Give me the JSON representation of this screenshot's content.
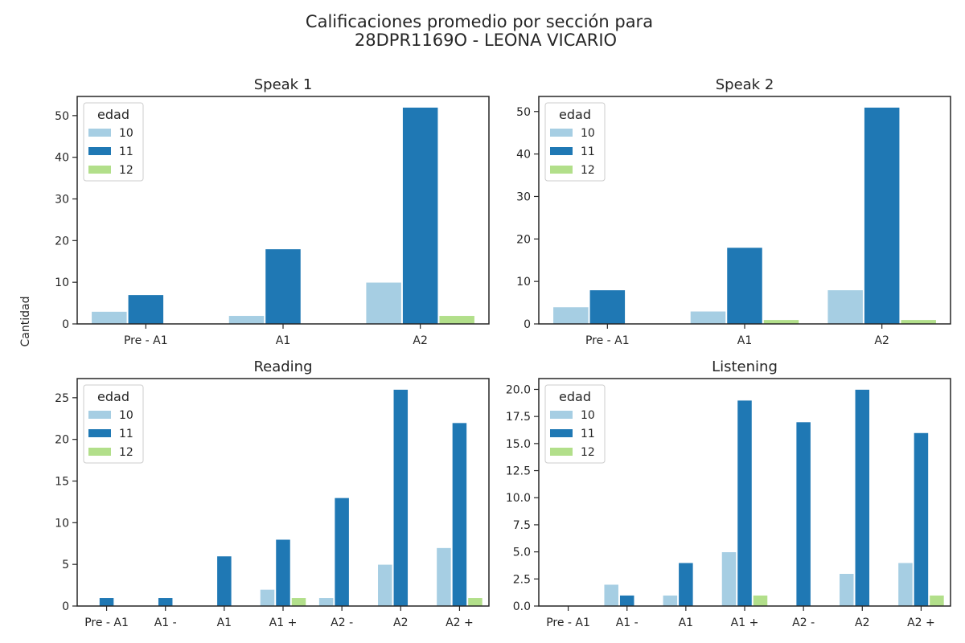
{
  "figure": {
    "title_line1": "Calificaciones promedio por sección para",
    "title_line2": "28DPR1169O - LEONA VICARIO",
    "ylabel": "Cantidad"
  },
  "colors": {
    "10": "#a6cee3",
    "11": "#1f78b4",
    "12": "#b2df8a"
  },
  "chart_data": [
    {
      "type": "bar",
      "title": "Speak 1",
      "categories": [
        "Pre - A1",
        "A1",
        "A2"
      ],
      "series": [
        {
          "name": "10",
          "values": [
            3,
            2,
            10
          ]
        },
        {
          "name": "11",
          "values": [
            7,
            18,
            52
          ]
        },
        {
          "name": "12",
          "values": [
            0,
            0,
            2
          ]
        }
      ],
      "ylim": [
        0,
        54.6
      ],
      "yticks": [
        0,
        10,
        20,
        30,
        40,
        50
      ],
      "legend": {
        "title": "edad",
        "placement": "top-left"
      }
    },
    {
      "type": "bar",
      "title": "Speak 2",
      "categories": [
        "Pre - A1",
        "A1",
        "A2"
      ],
      "series": [
        {
          "name": "10",
          "values": [
            4,
            3,
            8
          ]
        },
        {
          "name": "11",
          "values": [
            8,
            18,
            51
          ]
        },
        {
          "name": "12",
          "values": [
            0,
            1,
            1
          ]
        }
      ],
      "ylim": [
        0,
        53.55
      ],
      "yticks": [
        0,
        10,
        20,
        30,
        40,
        50
      ],
      "legend": {
        "title": "edad",
        "placement": "top-left"
      }
    },
    {
      "type": "bar",
      "title": "Reading",
      "categories": [
        "Pre - A1",
        "A1 -",
        "A1",
        "A1 +",
        "A2 -",
        "A2",
        "A2 +"
      ],
      "series": [
        {
          "name": "10",
          "values": [
            0,
            0,
            0,
            2,
            1,
            5,
            7
          ]
        },
        {
          "name": "11",
          "values": [
            1,
            1,
            6,
            8,
            13,
            26,
            22
          ]
        },
        {
          "name": "12",
          "values": [
            0,
            0,
            0,
            1,
            0,
            0,
            1
          ]
        }
      ],
      "ylim": [
        0,
        27.3
      ],
      "yticks": [
        0,
        5,
        10,
        15,
        20,
        25
      ],
      "legend": {
        "title": "edad",
        "placement": "top-left"
      }
    },
    {
      "type": "bar",
      "title": "Listening",
      "categories": [
        "Pre - A1",
        "A1 -",
        "A1",
        "A1 +",
        "A2 -",
        "A2",
        "A2 +"
      ],
      "series": [
        {
          "name": "10",
          "values": [
            0,
            2,
            1,
            5,
            0,
            3,
            4
          ]
        },
        {
          "name": "11",
          "values": [
            0,
            1,
            4,
            19,
            17,
            20,
            16
          ]
        },
        {
          "name": "12",
          "values": [
            0,
            0,
            0,
            1,
            0,
            0,
            1
          ]
        }
      ],
      "ylim": [
        0,
        21
      ],
      "yticks": [
        0.0,
        2.5,
        5.0,
        7.5,
        10.0,
        12.5,
        15.0,
        17.5,
        20.0
      ],
      "ytick_labels": [
        "0.0",
        "2.5",
        "5.0",
        "7.5",
        "10.0",
        "12.5",
        "15.0",
        "17.5",
        "20.0"
      ],
      "legend": {
        "title": "edad",
        "placement": "top-left"
      }
    }
  ]
}
